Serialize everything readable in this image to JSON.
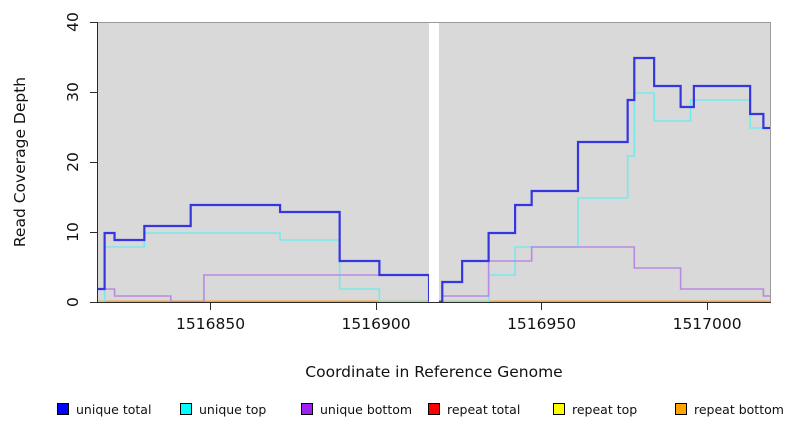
{
  "chart_data": {
    "type": "line",
    "subtype": "step-coverage-plot",
    "title": "",
    "xlabel": "Coordinate in Reference Genome",
    "ylabel": "Read Coverage Depth",
    "xlim": [
      1516816,
      1517019
    ],
    "ylim": [
      0,
      40
    ],
    "x_ticks": [
      1516850,
      1516900,
      1516950,
      1517000
    ],
    "y_ticks": [
      0,
      10,
      20,
      30,
      40
    ],
    "grid": false,
    "panel_background": "#d9d9d9",
    "gap": {
      "start": 1516916,
      "end": 1516919,
      "color": "#ffffff"
    },
    "baseline_overlays": {
      "color": "#8cd79c",
      "ranges": [
        [
          1516901,
          1516916
        ],
        [
          1516919,
          1516934
        ]
      ]
    },
    "series": [
      {
        "name": "unique total",
        "swatch_color": "#0000ff",
        "line_color": "#3636e0",
        "line_width": 2.2,
        "z": 6,
        "segments": [
          {
            "steps": [
              [
                1516816,
                2
              ],
              [
                1516818,
                10
              ],
              [
                1516821,
                9
              ],
              [
                1516830,
                11
              ],
              [
                1516844,
                14
              ],
              [
                1516871,
                13
              ],
              [
                1516889,
                6
              ],
              [
                1516901,
                4
              ],
              [
                1516916,
                0
              ]
            ]
          },
          {
            "steps": [
              [
                1516919,
                0
              ],
              [
                1516920,
                3
              ],
              [
                1516926,
                6
              ],
              [
                1516934,
                10
              ],
              [
                1516942,
                14
              ],
              [
                1516947,
                16
              ],
              [
                1516961,
                23
              ],
              [
                1516976,
                29
              ],
              [
                1516978,
                35
              ],
              [
                1516984,
                31
              ],
              [
                1516992,
                28
              ],
              [
                1516996,
                31
              ],
              [
                1517013,
                27
              ],
              [
                1517017,
                25
              ],
              [
                1517019,
                25
              ]
            ]
          }
        ]
      },
      {
        "name": "unique top",
        "swatch_color": "#00ffff",
        "line_color": "#76eaea",
        "line_width": 1.6,
        "z": 4,
        "segments": [
          {
            "steps": [
              [
                1516816,
                0
              ],
              [
                1516818,
                8
              ],
              [
                1516830,
                10
              ],
              [
                1516871,
                9
              ],
              [
                1516889,
                2
              ],
              [
                1516901,
                0
              ],
              [
                1516916,
                0
              ]
            ]
          },
          {
            "steps": [
              [
                1516919,
                0
              ],
              [
                1516934,
                4
              ],
              [
                1516942,
                8
              ],
              [
                1516961,
                15
              ],
              [
                1516976,
                21
              ],
              [
                1516978,
                30
              ],
              [
                1516984,
                26
              ],
              [
                1516995,
                29
              ],
              [
                1517013,
                25
              ],
              [
                1517019,
                25
              ]
            ]
          }
        ]
      },
      {
        "name": "unique bottom",
        "swatch_color": "#a020f0",
        "line_color": "#b78ae4",
        "line_width": 1.6,
        "z": 5,
        "segments": [
          {
            "steps": [
              [
                1516816,
                2
              ],
              [
                1516821,
                1
              ],
              [
                1516838,
                0
              ],
              [
                1516848,
                4
              ],
              [
                1516916,
                0
              ]
            ]
          },
          {
            "steps": [
              [
                1516919,
                0
              ],
              [
                1516920,
                1
              ],
              [
                1516934,
                6
              ],
              [
                1516947,
                8
              ],
              [
                1516978,
                5
              ],
              [
                1516992,
                2
              ],
              [
                1517017,
                1
              ],
              [
                1517019,
                1
              ]
            ]
          }
        ]
      },
      {
        "name": "repeat total",
        "swatch_color": "#ff0000",
        "line_color": "#ff2020",
        "line_width": 1.5,
        "z": 1,
        "segments": [
          {
            "steps": [
              [
                1516816,
                0
              ],
              [
                1516916,
                0
              ]
            ]
          },
          {
            "steps": [
              [
                1516919,
                0
              ],
              [
                1517019,
                0
              ]
            ]
          }
        ]
      },
      {
        "name": "repeat top",
        "swatch_color": "#ffff00",
        "line_color": "#f2f230",
        "line_width": 1.5,
        "z": 2,
        "segments": [
          {
            "steps": [
              [
                1516816,
                0
              ],
              [
                1516916,
                0
              ]
            ]
          },
          {
            "steps": [
              [
                1516919,
                0
              ],
              [
                1517019,
                0
              ]
            ]
          }
        ]
      },
      {
        "name": "repeat bottom",
        "swatch_color": "#ffa500",
        "line_color": "#ffa132",
        "line_width": 2.4,
        "z": 3,
        "segments": [
          {
            "steps": [
              [
                1516816,
                0
              ],
              [
                1516916,
                0
              ]
            ]
          },
          {
            "steps": [
              [
                1516919,
                0
              ],
              [
                1517019,
                0
              ]
            ]
          }
        ]
      }
    ],
    "legend": {
      "position": "bottom",
      "entries": [
        {
          "label": "unique total",
          "color": "#0000ff"
        },
        {
          "label": "unique top",
          "color": "#00ffff"
        },
        {
          "label": "unique bottom",
          "color": "#a020f0"
        },
        {
          "label": "repeat total",
          "color": "#ff0000"
        },
        {
          "label": "repeat top",
          "color": "#ffff00"
        },
        {
          "label": "repeat bottom",
          "color": "#ffa500"
        }
      ]
    }
  }
}
